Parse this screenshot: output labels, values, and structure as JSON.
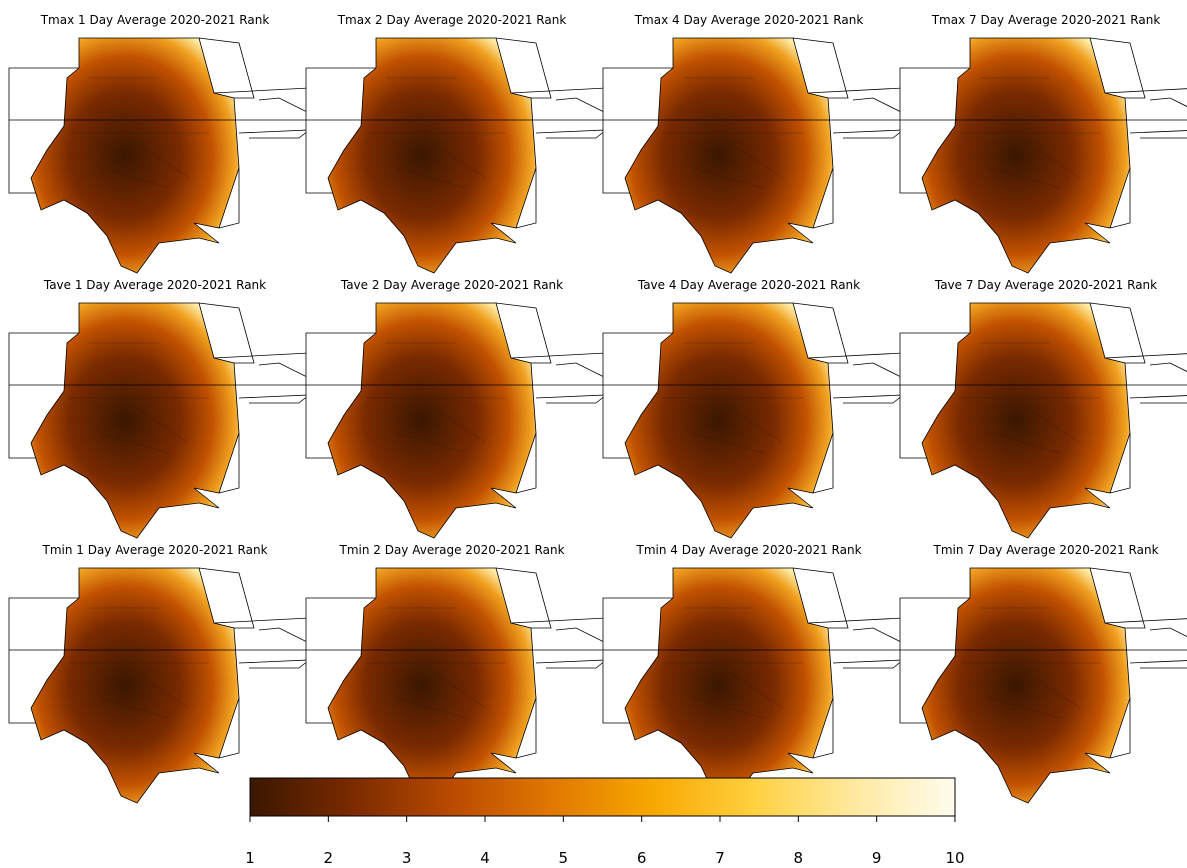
{
  "panels": [
    {
      "title": "Tmax 1 Day Average 2020-2021 Rank"
    },
    {
      "title": "Tmax 2 Day Average 2020-2021 Rank"
    },
    {
      "title": "Tmax 4 Day Average 2020-2021 Rank"
    },
    {
      "title": "Tmax 7 Day Average 2020-2021 Rank"
    },
    {
      "title": "Tave 1 Day Average 2020-2021 Rank"
    },
    {
      "title": "Tave 2 Day Average 2020-2021 Rank"
    },
    {
      "title": "Tave 4 Day Average 2020-2021 Rank"
    },
    {
      "title": "Tave 7 Day Average 2020-2021 Rank"
    },
    {
      "title": "Tmin 1 Day Average 2020-2021 Rank"
    },
    {
      "title": "Tmin 2 Day Average 2020-2021 Rank"
    },
    {
      "title": "Tmin 4 Day Average 2020-2021 Rank"
    },
    {
      "title": "Tmin 7 Day Average 2020-2021 Rank"
    }
  ],
  "colorbar": {
    "range": [
      1,
      10
    ],
    "ticks": [
      1,
      2,
      3,
      4,
      5,
      6,
      7,
      8,
      9,
      10
    ],
    "colors": [
      "#3a1700",
      "#7a2a00",
      "#b94a00",
      "#e07800",
      "#f7a800",
      "#ffd040",
      "#ffe9a0",
      "#fffcee"
    ]
  }
}
